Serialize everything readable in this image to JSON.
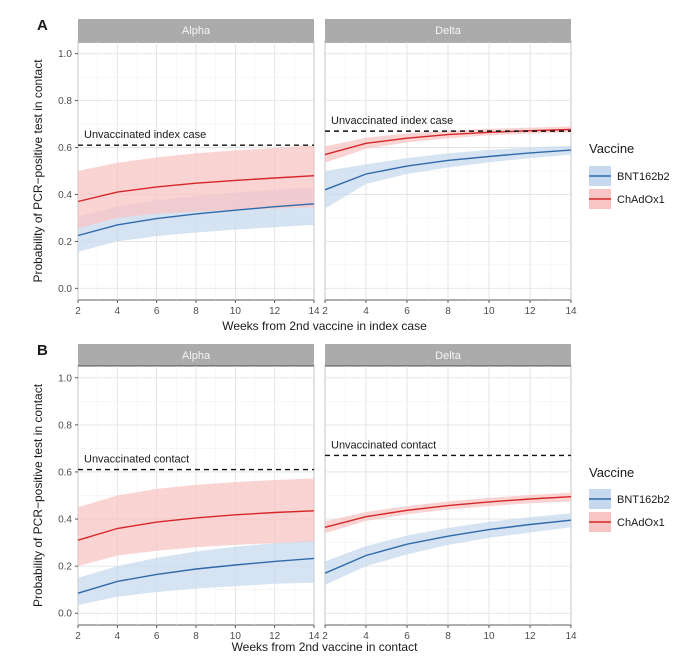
{
  "chart_data": [
    {
      "type": "line",
      "panel_label": "A",
      "ylabel": "Probability of PCR−positive test in contact",
      "xlabel": "Weeks from 2nd vaccine in index case",
      "xlim": [
        2,
        14
      ],
      "ylim": [
        0,
        1
      ],
      "xticks": [
        2,
        4,
        6,
        8,
        10,
        12,
        14
      ],
      "yticks": [
        "0.0",
        "0.2",
        "0.4",
        "0.6",
        "0.8",
        "1.0"
      ],
      "grid": true,
      "legend": {
        "title": "Vaccine",
        "position": "right",
        "items": [
          {
            "name": "BNT162b2",
            "color": "#2f6aaa",
            "fill": "#c7d9ee"
          },
          {
            "name": "ChAdOx1",
            "color": "#d62728",
            "fill": "#f8c4c4"
          }
        ]
      },
      "facets": [
        {
          "strip": "Alpha",
          "reference_line": {
            "y": 0.61,
            "label": "Unvaccinated index case"
          },
          "series": [
            {
              "name": "BNT162b2",
              "x": [
                2,
                4,
                6,
                8,
                10,
                12,
                14
              ],
              "y": [
                0.225,
                0.27,
                0.297,
                0.317,
                0.333,
                0.348,
                0.36
              ],
              "lower": [
                0.155,
                0.2,
                0.223,
                0.238,
                0.25,
                0.26,
                0.27
              ],
              "upper": [
                0.305,
                0.348,
                0.375,
                0.393,
                0.408,
                0.42,
                0.43
              ]
            },
            {
              "name": "ChAdOx1",
              "x": [
                2,
                4,
                6,
                8,
                10,
                12,
                14
              ],
              "y": [
                0.37,
                0.41,
                0.432,
                0.448,
                0.46,
                0.47,
                0.48
              ],
              "lower": [
                0.255,
                0.3,
                0.318,
                0.327,
                0.335,
                0.34,
                0.345
              ],
              "upper": [
                0.5,
                0.535,
                0.558,
                0.575,
                0.588,
                0.598,
                0.61
              ]
            }
          ]
        },
        {
          "strip": "Delta",
          "reference_line": {
            "y": 0.67,
            "label": "Unvaccinated index case"
          },
          "series": [
            {
              "name": "BNT162b2",
              "x": [
                2,
                4,
                6,
                8,
                10,
                12,
                14
              ],
              "y": [
                0.42,
                0.487,
                0.521,
                0.545,
                0.562,
                0.577,
                0.589
              ],
              "lower": [
                0.34,
                0.445,
                0.487,
                0.515,
                0.537,
                0.555,
                0.57
              ],
              "upper": [
                0.5,
                0.528,
                0.555,
                0.575,
                0.59,
                0.6,
                0.608
              ]
            },
            {
              "name": "ChAdOx1",
              "x": [
                2,
                4,
                6,
                8,
                10,
                12,
                14
              ],
              "y": [
                0.57,
                0.618,
                0.64,
                0.655,
                0.665,
                0.672,
                0.677
              ],
              "lower": [
                0.535,
                0.595,
                0.622,
                0.64,
                0.652,
                0.66,
                0.665
              ],
              "upper": [
                0.605,
                0.642,
                0.66,
                0.672,
                0.68,
                0.685,
                0.69
              ]
            }
          ]
        }
      ]
    },
    {
      "type": "line",
      "panel_label": "B",
      "ylabel": "Probability of PCR−positive test in contact",
      "xlabel": "Weeks from 2nd vaccine in contact",
      "xlim": [
        2,
        14
      ],
      "ylim": [
        0,
        1
      ],
      "xticks": [
        2,
        4,
        6,
        8,
        10,
        12,
        14
      ],
      "yticks": [
        "0.0",
        "0.2",
        "0.4",
        "0.6",
        "0.8",
        "1.0"
      ],
      "grid": true,
      "legend": {
        "title": "Vaccine",
        "position": "right",
        "items": [
          {
            "name": "BNT162b2",
            "color": "#2f6aaa",
            "fill": "#c7d9ee"
          },
          {
            "name": "ChAdOx1",
            "color": "#d62728",
            "fill": "#f8c4c4"
          }
        ]
      },
      "facets": [
        {
          "strip": "Alpha",
          "reference_line": {
            "y": 0.61,
            "label": "Unvaccinated contact"
          },
          "series": [
            {
              "name": "BNT162b2",
              "x": [
                2,
                4,
                6,
                8,
                10,
                12,
                14
              ],
              "y": [
                0.085,
                0.135,
                0.165,
                0.188,
                0.205,
                0.22,
                0.233
              ],
              "lower": [
                0.035,
                0.07,
                0.09,
                0.105,
                0.115,
                0.125,
                0.13
              ],
              "upper": [
                0.15,
                0.2,
                0.235,
                0.262,
                0.282,
                0.298,
                0.31
              ]
            },
            {
              "name": "ChAdOx1",
              "x": [
                2,
                4,
                6,
                8,
                10,
                12,
                14
              ],
              "y": [
                0.31,
                0.36,
                0.387,
                0.405,
                0.418,
                0.428,
                0.435
              ],
              "lower": [
                0.2,
                0.245,
                0.265,
                0.28,
                0.29,
                0.298,
                0.305
              ],
              "upper": [
                0.45,
                0.5,
                0.528,
                0.545,
                0.557,
                0.566,
                0.572
              ]
            }
          ]
        },
        {
          "strip": "Delta",
          "reference_line": {
            "y": 0.67,
            "label": "Unvaccinated contact"
          },
          "series": [
            {
              "name": "BNT162b2",
              "x": [
                2,
                4,
                6,
                8,
                10,
                12,
                14
              ],
              "y": [
                0.17,
                0.245,
                0.293,
                0.327,
                0.355,
                0.377,
                0.395
              ],
              "lower": [
                0.12,
                0.2,
                0.25,
                0.29,
                0.32,
                0.343,
                0.365
              ],
              "upper": [
                0.22,
                0.285,
                0.33,
                0.362,
                0.388,
                0.408,
                0.425
              ]
            },
            {
              "name": "ChAdOx1",
              "x": [
                2,
                4,
                6,
                8,
                10,
                12,
                14
              ],
              "y": [
                0.365,
                0.41,
                0.437,
                0.457,
                0.473,
                0.485,
                0.495
              ],
              "lower": [
                0.34,
                0.392,
                0.42,
                0.44,
                0.455,
                0.467,
                0.475
              ],
              "upper": [
                0.39,
                0.43,
                0.455,
                0.475,
                0.49,
                0.502,
                0.512
              ]
            }
          ]
        }
      ]
    }
  ]
}
